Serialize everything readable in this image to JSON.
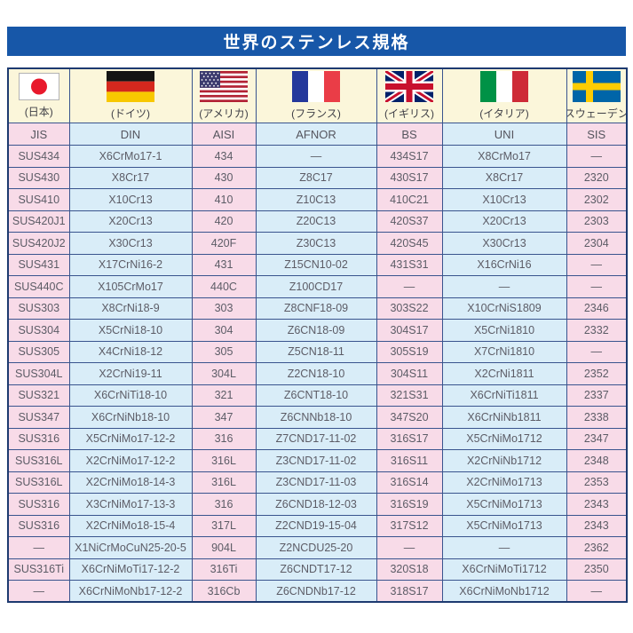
{
  "title": "世界のステンレス規格",
  "colors": {
    "banner": "#1757a8",
    "outer_border": "#1d3a70",
    "inner_border": "#39548e",
    "header_bg": "#fbf6da",
    "pink_cell": "#f8dbe8",
    "blue_cell": "#d9edf8",
    "cell_text": "#5c5c66",
    "title_text": "#ffffff"
  },
  "countries": [
    {
      "flag": "japan-flag",
      "label": "(日本)",
      "standard": "JIS"
    },
    {
      "flag": "germany-flag",
      "label": "(ドイツ)",
      "standard": "DIN"
    },
    {
      "flag": "usa-flag",
      "label": "(アメリカ)",
      "standard": "AISI"
    },
    {
      "flag": "france-flag",
      "label": "(フランス)",
      "standard": "AFNOR"
    },
    {
      "flag": "uk-flag",
      "label": "(イギリス)",
      "standard": "BS"
    },
    {
      "flag": "italy-flag",
      "label": "(イタリア)",
      "standard": "UNI"
    },
    {
      "flag": "sweden-flag",
      "label": "(スウェーデン)",
      "standard": "SIS"
    }
  ],
  "rows": [
    [
      "SUS434",
      "X6CrMo17-1",
      "434",
      "—",
      "434S17",
      "X8CrMo17",
      "—"
    ],
    [
      "SUS430",
      "X8Cr17",
      "430",
      "Z8C17",
      "430S17",
      "X8Cr17",
      "2320"
    ],
    [
      "SUS410",
      "X10Cr13",
      "410",
      "Z10C13",
      "410C21",
      "X10Cr13",
      "2302"
    ],
    [
      "SUS420J1",
      "X20Cr13",
      "420",
      "Z20C13",
      "420S37",
      "X20Cr13",
      "2303"
    ],
    [
      "SUS420J2",
      "X30Cr13",
      "420F",
      "Z30C13",
      "420S45",
      "X30Cr13",
      "2304"
    ],
    [
      "SUS431",
      "X17CrNi16-2",
      "431",
      "Z15CN10-02",
      "431S31",
      "X16CrNi16",
      "—"
    ],
    [
      "SUS440C",
      "X105CrMo17",
      "440C",
      "Z100CD17",
      "—",
      "—",
      "—"
    ],
    [
      "SUS303",
      "X8CrNi18-9",
      "303",
      "Z8CNF18-09",
      "303S22",
      "X10CrNiS1809",
      "2346"
    ],
    [
      "SUS304",
      "X5CrNi18-10",
      "304",
      "Z6CN18-09",
      "304S17",
      "X5CrNi1810",
      "2332"
    ],
    [
      "SUS305",
      "X4CrNi18-12",
      "305",
      "Z5CN18-11",
      "305S19",
      "X7CrNi1810",
      "—"
    ],
    [
      "SUS304L",
      "X2CrNi19-11",
      "304L",
      "Z2CN18-10",
      "304S11",
      "X2CrNi1811",
      "2352"
    ],
    [
      "SUS321",
      "X6CrNiTi18-10",
      "321",
      "Z6CNT18-10",
      "321S31",
      "X6CrNiTi1811",
      "2337"
    ],
    [
      "SUS347",
      "X6CrNiNb18-10",
      "347",
      "Z6CNNb18-10",
      "347S20",
      "X6CrNiNb1811",
      "2338"
    ],
    [
      "SUS316",
      "X5CrNiMo17-12-2",
      "316",
      "Z7CND17-11-02",
      "316S17",
      "X5CrNiMo1712",
      "2347"
    ],
    [
      "SUS316L",
      "X2CrNiMo17-12-2",
      "316L",
      "Z3CND17-11-02",
      "316S11",
      "X2CrNiNb1712",
      "2348"
    ],
    [
      "SUS316L",
      "X2CrNiMo18-14-3",
      "316L",
      "Z3CND17-11-03",
      "316S14",
      "X2CrNiMo1713",
      "2353"
    ],
    [
      "SUS316",
      "X3CrNiMo17-13-3",
      "316",
      "Z6CND18-12-03",
      "316S19",
      "X5CrNiMo1713",
      "2343"
    ],
    [
      "SUS316",
      "X2CrNiMo18-15-4",
      "317L",
      "Z2CND19-15-04",
      "317S12",
      "X5CrNiMo1713",
      "2343"
    ],
    [
      "—",
      "X1NiCrMoCuN25-20-5",
      "904L",
      "Z2NCDU25-20",
      "—",
      "—",
      "2362"
    ],
    [
      "SUS316Ti",
      "X6CrNiMoTi17-12-2",
      "316Ti",
      "Z6CNDT17-12",
      "320S18",
      "X6CrNiMoTi1712",
      "2350"
    ],
    [
      "—",
      "X6CrNiMoNb17-12-2",
      "316Cb",
      "Z6CNDNb17-12",
      "318S17",
      "X6CrNiMoNb1712",
      "—"
    ]
  ]
}
